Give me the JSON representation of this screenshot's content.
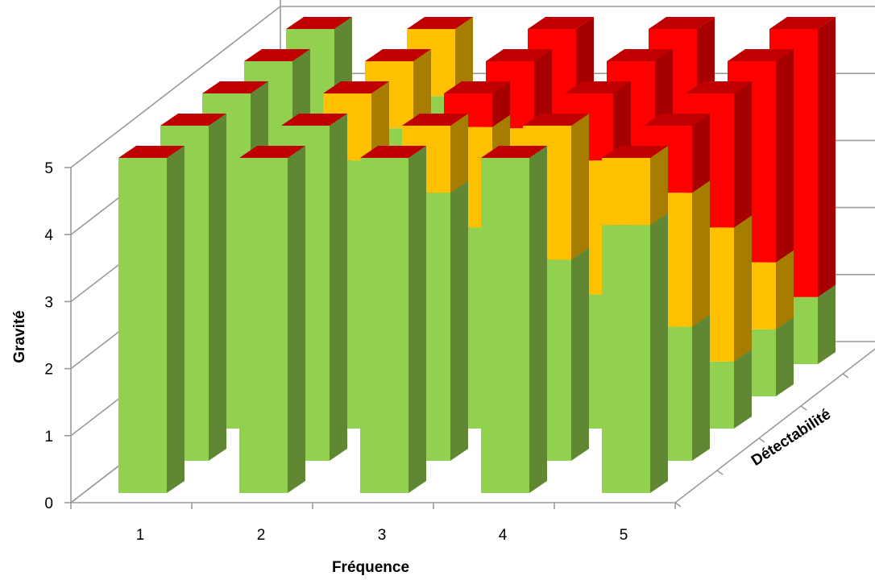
{
  "chart_data": {
    "type": "3d-stacked-bar",
    "title": "",
    "xlabel": "Fréquence",
    "ylabel": "Gravité",
    "zlabel": "Détectabilité",
    "x_categories": [
      "1",
      "2",
      "3",
      "4",
      "5"
    ],
    "depth_rows": 5,
    "ylim": [
      0,
      5
    ],
    "yticks": [
      "0",
      "1",
      "2",
      "3",
      "4",
      "5"
    ],
    "colors": {
      "green": "#92d050",
      "orange": "#ffc000",
      "red": "#ff0000"
    },
    "segments_note": "bars[row][col] = [green, orange, red]; row 0 = front (Détectabilité 1), col 0 = Fréquence 1",
    "bars": [
      [
        [
          5,
          0,
          0
        ],
        [
          5,
          0,
          0
        ],
        [
          5,
          0,
          0
        ],
        [
          5,
          0,
          0
        ],
        [
          4,
          1,
          0
        ]
      ],
      [
        [
          5,
          0,
          0
        ],
        [
          5,
          0,
          0
        ],
        [
          4,
          1,
          0
        ],
        [
          3,
          2,
          0
        ],
        [
          2,
          2,
          1
        ]
      ],
      [
        [
          5,
          0,
          0
        ],
        [
          4,
          1,
          0
        ],
        [
          3,
          1.5,
          0.5
        ],
        [
          2,
          2,
          1
        ],
        [
          1,
          2,
          2
        ]
      ],
      [
        [
          5,
          0,
          0
        ],
        [
          4,
          1,
          0
        ],
        [
          2,
          2,
          1
        ],
        [
          2,
          1.5,
          1.5
        ],
        [
          1,
          1,
          3
        ]
      ],
      [
        [
          5,
          0,
          0
        ],
        [
          4,
          1,
          0
        ],
        [
          3,
          0,
          2
        ],
        [
          3,
          0,
          2
        ],
        [
          1,
          0,
          4
        ]
      ]
    ],
    "grid": true,
    "legend": "none"
  }
}
